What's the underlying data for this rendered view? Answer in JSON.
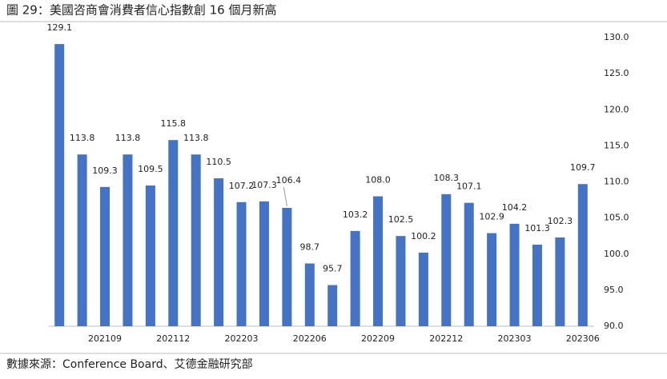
{
  "chart_data": {
    "type": "bar",
    "title": "圖 29：美國咨商會消費者信心指數創 16 個月新高",
    "source": "數據來源：Conference Board、艾德金融研究部",
    "categories": [
      null,
      null,
      "202109",
      null,
      null,
      "202112",
      null,
      null,
      "202203",
      null,
      null,
      "202206",
      null,
      null,
      "202209",
      null,
      null,
      "202212",
      null,
      null,
      "202303",
      null,
      null,
      "202306"
    ],
    "values": [
      129.1,
      113.8,
      109.3,
      113.8,
      109.5,
      115.8,
      113.8,
      110.5,
      107.2,
      107.3,
      106.4,
      98.7,
      95.7,
      103.2,
      108.0,
      102.5,
      100.2,
      108.3,
      107.1,
      102.9,
      104.2,
      101.3,
      102.3,
      109.7
    ],
    "value_labels": [
      "129.1",
      "113.8",
      "109.3",
      "113.8",
      "109.5",
      "115.8",
      "113.8",
      "110.5",
      "107.2",
      "107.3",
      "106.4",
      "98.7",
      "95.7",
      "103.2",
      "108.0",
      "102.5",
      "100.2",
      "108.3",
      "107.1",
      "102.9",
      "104.2",
      "101.3",
      "102.3",
      "109.7"
    ],
    "color": "#4472c4",
    "ylim": [
      90,
      130
    ],
    "yticks": [
      {
        "value": 90,
        "label": "90.0"
      },
      {
        "value": 95,
        "label": "95.0"
      },
      {
        "value": 100,
        "label": "100.0"
      },
      {
        "value": 105,
        "label": "105.0"
      },
      {
        "value": 110,
        "label": "110.0"
      },
      {
        "value": 115,
        "label": "115.0"
      },
      {
        "value": 120,
        "label": "120.0"
      },
      {
        "value": 125,
        "label": "125.0"
      },
      {
        "value": 130,
        "label": "130.0"
      }
    ],
    "y_axis_side": "right",
    "grid": false
  }
}
